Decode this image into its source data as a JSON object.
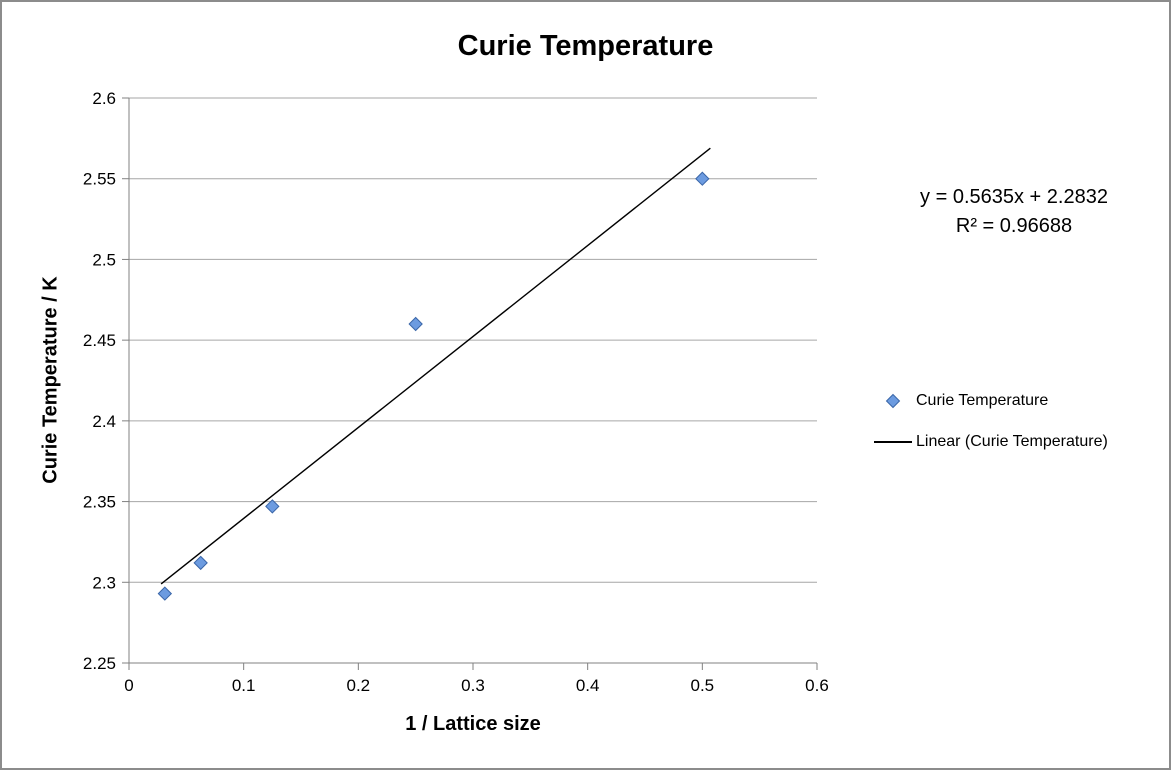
{
  "window": {
    "background": "#ffffff",
    "border_color": "#8c8c8c"
  },
  "chart_data": {
    "type": "scatter",
    "title": "Curie Temperature",
    "xlabel": "1 / Lattice size",
    "ylabel": "Curie Temperature / K",
    "xlim": [
      0,
      0.6
    ],
    "ylim": [
      2.25,
      2.6
    ],
    "x_ticks": [
      0,
      0.1,
      0.2,
      0.3,
      0.4,
      0.5,
      0.6
    ],
    "x_tick_labels": [
      "0",
      "0.1",
      "0.2",
      "0.3",
      "0.4",
      "0.5",
      "0.6"
    ],
    "y_ticks": [
      2.25,
      2.3,
      2.35,
      2.4,
      2.45,
      2.5,
      2.55,
      2.6
    ],
    "y_tick_labels": [
      "2.25",
      "2.3",
      "2.35",
      "2.4",
      "2.45",
      "2.5",
      "2.55",
      "2.6"
    ],
    "grid": {
      "horizontal": true,
      "vertical": false
    },
    "colors": {
      "gridline": "#A6A6A6",
      "axis": "#808080",
      "text": "#000000"
    },
    "series": [
      {
        "name": "Curie Temperature",
        "type": "scatter",
        "marker": "diamond",
        "marker_fill": "#6C9BE0",
        "marker_stroke": "#3A66A8",
        "points": [
          {
            "x": 0.03125,
            "y": 2.293
          },
          {
            "x": 0.0625,
            "y": 2.312
          },
          {
            "x": 0.125,
            "y": 2.347
          },
          {
            "x": 0.25,
            "y": 2.46
          },
          {
            "x": 0.5,
            "y": 2.55
          }
        ]
      },
      {
        "name": "Linear (Curie Temperature)",
        "type": "trendline",
        "color": "#000000",
        "slope": 0.5635,
        "intercept": 2.2832,
        "x_start": 0.028,
        "x_end": 0.507
      }
    ],
    "annotations": {
      "equation": "y = 0.5635x + 2.2832",
      "r_squared": "R² = 0.96688"
    },
    "legend": {
      "position": "right",
      "entries": [
        "Curie Temperature",
        "Linear (Curie Temperature)"
      ]
    }
  }
}
